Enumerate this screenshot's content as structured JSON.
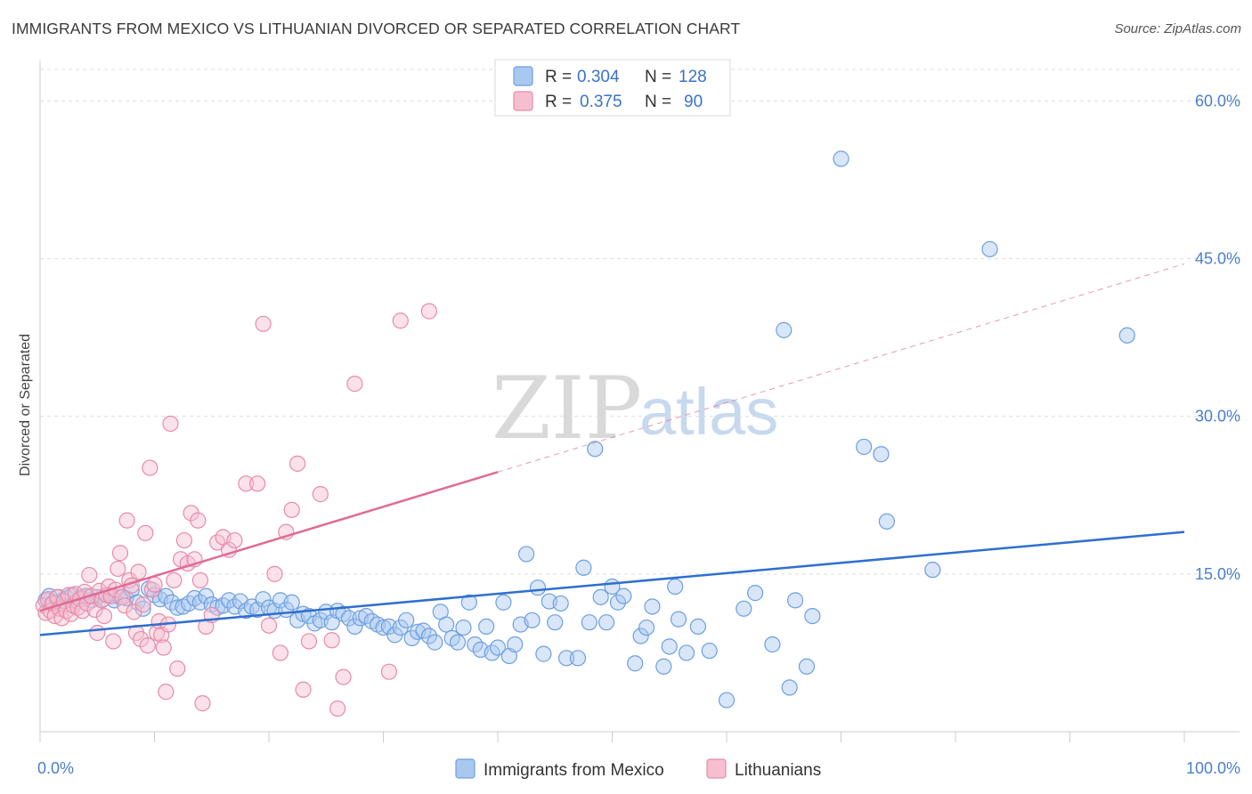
{
  "header": {
    "title": "IMMIGRANTS FROM MEXICO VS LITHUANIAN DIVORCED OR SEPARATED CORRELATION CHART",
    "source": "Source: ZipAtlas.com"
  },
  "watermark": {
    "part1": "ZIP",
    "part2": "atlas"
  },
  "legend": {
    "rows": [
      {
        "r_label": "R =",
        "r_value": "0.304",
        "n_label": "N =",
        "n_value": "128",
        "color": "#a9c8f0",
        "stroke": "#6d9fe0"
      },
      {
        "r_label": "R =",
        "r_value": "0.375",
        "n_label": "N =",
        "n_value": "90",
        "color": "#f6bfd0",
        "stroke": "#e88aa8"
      }
    ]
  },
  "chart_data": {
    "type": "scatter",
    "title": "IMMIGRANTS FROM MEXICO VS LITHUANIAN DIVORCED OR SEPARATED CORRELATION CHART",
    "ylabel": "Divorced or Separated",
    "xlabel": "",
    "xlim": [
      0,
      100
    ],
    "ylim": [
      0,
      63
    ],
    "x_tick_labels": [
      {
        "value": 0,
        "label": "0.0%"
      },
      {
        "value": 100,
        "label": "100.0%"
      }
    ],
    "y_tick_labels": [
      {
        "value": 15,
        "label": "15.0%"
      },
      {
        "value": 30,
        "label": "30.0%"
      },
      {
        "value": 45,
        "label": "45.0%"
      },
      {
        "value": 60,
        "label": "60.0%"
      }
    ],
    "grid": true,
    "series": [
      {
        "name": "Immigrants from Mexico",
        "color": "#a9c8f0",
        "stroke": "#6d9fe0",
        "line_color": "#2f6fcf",
        "trend": {
          "x0": 0,
          "y0": 9.2,
          "x1": 100,
          "y1": 19.0,
          "dashed_from": null
        },
        "points": [
          [
            0.5,
            12.5
          ],
          [
            0.8,
            12.9
          ],
          [
            1.2,
            12.3
          ],
          [
            1.6,
            12.8
          ],
          [
            2.0,
            12.5
          ],
          [
            2.4,
            12.7
          ],
          [
            2.8,
            13.0
          ],
          [
            3.2,
            12.4
          ],
          [
            3.6,
            12.8
          ],
          [
            4.0,
            12.9
          ],
          [
            4.5,
            12.5
          ],
          [
            5.0,
            12.8
          ],
          [
            5.5,
            12.6
          ],
          [
            6.0,
            13.0
          ],
          [
            6.5,
            12.5
          ],
          [
            7.0,
            12.8
          ],
          [
            7.5,
            12.7
          ],
          [
            8.0,
            13.5
          ],
          [
            8.5,
            12.3
          ],
          [
            9.0,
            11.7
          ],
          [
            9.5,
            13.6
          ],
          [
            10.0,
            13.0
          ],
          [
            10.5,
            12.6
          ],
          [
            11.0,
            12.9
          ],
          [
            11.5,
            12.3
          ],
          [
            12.0,
            11.8
          ],
          [
            12.5,
            11.9
          ],
          [
            13.0,
            12.2
          ],
          [
            13.5,
            12.7
          ],
          [
            14.0,
            12.3
          ],
          [
            14.5,
            12.9
          ],
          [
            15.0,
            12.1
          ],
          [
            15.5,
            11.8
          ],
          [
            16.0,
            12.0
          ],
          [
            16.5,
            12.5
          ],
          [
            17.0,
            11.9
          ],
          [
            17.5,
            12.4
          ],
          [
            18.0,
            11.5
          ],
          [
            18.5,
            11.9
          ],
          [
            19.0,
            11.6
          ],
          [
            19.5,
            12.6
          ],
          [
            20.0,
            11.8
          ],
          [
            20.5,
            11.5
          ],
          [
            21.0,
            12.5
          ],
          [
            21.5,
            11.6
          ],
          [
            22.0,
            12.3
          ],
          [
            22.5,
            10.6
          ],
          [
            23.0,
            11.2
          ],
          [
            23.5,
            11.0
          ],
          [
            24.0,
            10.3
          ],
          [
            24.5,
            10.6
          ],
          [
            25.0,
            11.4
          ],
          [
            25.5,
            10.4
          ],
          [
            26.0,
            11.5
          ],
          [
            26.5,
            11.2
          ],
          [
            27.0,
            10.8
          ],
          [
            27.5,
            10.0
          ],
          [
            28.0,
            10.8
          ],
          [
            28.5,
            11.0
          ],
          [
            29.0,
            10.5
          ],
          [
            29.5,
            10.2
          ],
          [
            30.0,
            9.9
          ],
          [
            30.5,
            10.0
          ],
          [
            31.0,
            9.2
          ],
          [
            31.5,
            9.9
          ],
          [
            32.0,
            10.6
          ],
          [
            32.5,
            8.9
          ],
          [
            33.0,
            9.5
          ],
          [
            33.5,
            9.6
          ],
          [
            34.0,
            9.1
          ],
          [
            34.5,
            8.5
          ],
          [
            35.0,
            11.4
          ],
          [
            35.5,
            10.2
          ],
          [
            36.0,
            8.9
          ],
          [
            36.5,
            8.5
          ],
          [
            37.0,
            9.9
          ],
          [
            37.5,
            12.3
          ],
          [
            38.0,
            8.3
          ],
          [
            38.5,
            7.8
          ],
          [
            39.0,
            10.0
          ],
          [
            39.5,
            7.5
          ],
          [
            40.0,
            8.0
          ],
          [
            40.5,
            12.3
          ],
          [
            41.0,
            7.2
          ],
          [
            41.5,
            8.3
          ],
          [
            42.0,
            10.2
          ],
          [
            42.5,
            16.9
          ],
          [
            43.0,
            10.6
          ],
          [
            43.5,
            13.7
          ],
          [
            44.0,
            7.4
          ],
          [
            44.5,
            12.4
          ],
          [
            45.0,
            10.4
          ],
          [
            45.5,
            12.2
          ],
          [
            46.0,
            7.0
          ],
          [
            47.0,
            7.0
          ],
          [
            47.5,
            15.6
          ],
          [
            48.0,
            10.4
          ],
          [
            48.5,
            26.9
          ],
          [
            49.0,
            12.8
          ],
          [
            49.5,
            10.4
          ],
          [
            50.0,
            13.8
          ],
          [
            50.5,
            12.3
          ],
          [
            51.0,
            12.9
          ],
          [
            52.0,
            6.5
          ],
          [
            52.5,
            9.1
          ],
          [
            53.0,
            9.9
          ],
          [
            53.5,
            11.9
          ],
          [
            54.5,
            6.2
          ],
          [
            55.0,
            8.1
          ],
          [
            55.5,
            13.8
          ],
          [
            55.8,
            10.7
          ],
          [
            56.5,
            7.5
          ],
          [
            57.5,
            10.0
          ],
          [
            58.5,
            7.7
          ],
          [
            60.0,
            3.0
          ],
          [
            61.5,
            11.7
          ],
          [
            62.5,
            13.2
          ],
          [
            64.0,
            8.3
          ],
          [
            65.0,
            38.2
          ],
          [
            65.5,
            4.2
          ],
          [
            66.0,
            12.5
          ],
          [
            67.0,
            6.2
          ],
          [
            67.5,
            11.0
          ],
          [
            70.0,
            54.5
          ],
          [
            72.0,
            27.1
          ],
          [
            73.5,
            26.4
          ],
          [
            74.0,
            20.0
          ],
          [
            78.0,
            15.4
          ],
          [
            83.0,
            45.9
          ],
          [
            95.0,
            37.7
          ]
        ]
      },
      {
        "name": "Lithuanians",
        "color": "#f6bfd0",
        "stroke": "#e88aa8",
        "line_color": "#e06b94",
        "trend": {
          "x0": 0,
          "y0": 11.5,
          "x1": 100,
          "y1": 44.5,
          "solid_to_x": 40
        },
        "points": [
          [
            0.3,
            12.0
          ],
          [
            0.5,
            11.3
          ],
          [
            0.7,
            12.6
          ],
          [
            0.9,
            11.5
          ],
          [
            1.1,
            12.2
          ],
          [
            1.3,
            11.0
          ],
          [
            1.5,
            12.8
          ],
          [
            1.7,
            11.7
          ],
          [
            1.9,
            10.8
          ],
          [
            2.1,
            12.4
          ],
          [
            2.3,
            11.5
          ],
          [
            2.5,
            13.0
          ],
          [
            2.7,
            11.2
          ],
          [
            2.9,
            12.0
          ],
          [
            3.1,
            13.1
          ],
          [
            3.3,
            11.8
          ],
          [
            3.5,
            12.6
          ],
          [
            3.7,
            11.5
          ],
          [
            3.9,
            13.3
          ],
          [
            4.1,
            12.2
          ],
          [
            4.3,
            14.9
          ],
          [
            4.5,
            12.9
          ],
          [
            4.8,
            11.6
          ],
          [
            5.0,
            9.4
          ],
          [
            5.2,
            13.4
          ],
          [
            5.4,
            12.5
          ],
          [
            5.6,
            11.0
          ],
          [
            5.8,
            13.0
          ],
          [
            6.0,
            13.8
          ],
          [
            6.2,
            12.9
          ],
          [
            6.4,
            8.6
          ],
          [
            6.6,
            13.5
          ],
          [
            6.8,
            15.5
          ],
          [
            7.0,
            17.0
          ],
          [
            7.2,
            12.8
          ],
          [
            7.4,
            12.0
          ],
          [
            7.6,
            20.1
          ],
          [
            7.8,
            14.4
          ],
          [
            8.0,
            13.9
          ],
          [
            8.2,
            11.4
          ],
          [
            8.4,
            9.4
          ],
          [
            8.6,
            15.2
          ],
          [
            8.8,
            8.8
          ],
          [
            9.0,
            12.1
          ],
          [
            9.2,
            18.9
          ],
          [
            9.4,
            8.2
          ],
          [
            9.6,
            25.1
          ],
          [
            9.8,
            13.5
          ],
          [
            10.0,
            14.0
          ],
          [
            10.2,
            9.4
          ],
          [
            10.4,
            10.5
          ],
          [
            10.6,
            9.2
          ],
          [
            10.8,
            8.0
          ],
          [
            11.0,
            3.8
          ],
          [
            11.2,
            10.2
          ],
          [
            11.4,
            29.3
          ],
          [
            11.7,
            14.4
          ],
          [
            12.0,
            6.0
          ],
          [
            12.3,
            16.4
          ],
          [
            12.6,
            18.2
          ],
          [
            12.9,
            16.0
          ],
          [
            13.2,
            20.8
          ],
          [
            13.5,
            16.4
          ],
          [
            13.8,
            20.1
          ],
          [
            14.0,
            14.4
          ],
          [
            14.2,
            2.7
          ],
          [
            14.5,
            10.0
          ],
          [
            15.0,
            11.1
          ],
          [
            15.5,
            18.0
          ],
          [
            16.0,
            18.5
          ],
          [
            16.5,
            17.3
          ],
          [
            17.0,
            18.2
          ],
          [
            18.0,
            23.6
          ],
          [
            19.0,
            23.6
          ],
          [
            19.5,
            38.8
          ],
          [
            20.0,
            10.1
          ],
          [
            20.5,
            15.0
          ],
          [
            21.0,
            7.5
          ],
          [
            21.5,
            19.0
          ],
          [
            22.0,
            21.1
          ],
          [
            22.5,
            25.5
          ],
          [
            23.0,
            4.0
          ],
          [
            23.5,
            8.6
          ],
          [
            24.5,
            22.6
          ],
          [
            25.5,
            8.7
          ],
          [
            26.0,
            2.2
          ],
          [
            26.5,
            5.2
          ],
          [
            27.5,
            33.1
          ],
          [
            30.5,
            5.7
          ],
          [
            31.5,
            39.1
          ]
        ]
      }
    ]
  },
  "extra_point": {
    "series": "Lithuanians",
    "x": 34.0,
    "y": 40.0
  },
  "bottom_legend": {
    "items": [
      {
        "label": "Immigrants from Mexico"
      },
      {
        "label": "Lithuanians"
      }
    ]
  }
}
